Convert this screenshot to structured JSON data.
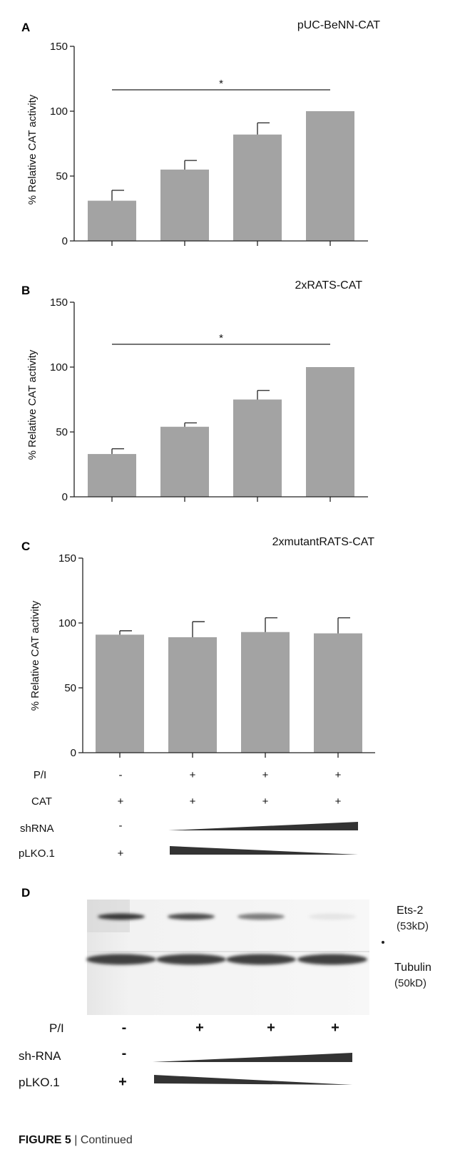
{
  "chart_data": [
    {
      "panel": "A",
      "type": "bar",
      "title": "pUC-BeNN-CAT",
      "ylabel": "% Relative CAT activity",
      "ylim": [
        0,
        150
      ],
      "yticks": [
        0,
        50,
        100,
        150
      ],
      "values": [
        31,
        55,
        82,
        100
      ],
      "errors": [
        8,
        7,
        9,
        0
      ],
      "bar_color": "#a3a3a3",
      "significance": {
        "from": 0,
        "to": 3,
        "label": "*"
      }
    },
    {
      "panel": "B",
      "type": "bar",
      "title": "2xRATS-CAT",
      "ylabel": "% Relative CAT activity",
      "ylim": [
        0,
        150
      ],
      "yticks": [
        0,
        50,
        100,
        150
      ],
      "values": [
        33,
        54,
        75,
        100
      ],
      "errors": [
        4,
        3,
        7,
        0
      ],
      "bar_color": "#a3a3a3",
      "significance": {
        "from": 0,
        "to": 3,
        "label": "*"
      }
    },
    {
      "panel": "C",
      "type": "bar",
      "title": "2xmutantRATS-CAT",
      "ylabel": "% Relative CAT activity",
      "ylim": [
        0,
        150
      ],
      "yticks": [
        0,
        50,
        100,
        150
      ],
      "values": [
        91,
        89,
        93,
        92
      ],
      "errors": [
        3,
        12,
        11,
        12
      ],
      "bar_color": "#a3a3a3"
    }
  ],
  "conditions_c": {
    "rows": [
      {
        "label": "P/I",
        "values": [
          "-",
          "+",
          "+",
          "+"
        ]
      },
      {
        "label": "CAT",
        "values": [
          "+",
          "+",
          "+",
          "+"
        ]
      },
      {
        "label": "shRNA",
        "values": [
          "-"
        ],
        "ramp": "increasing"
      },
      {
        "label": "pLKO.1",
        "values": [
          "+"
        ],
        "ramp": "decreasing"
      }
    ]
  },
  "western_blot": {
    "panel": "D",
    "bands": [
      {
        "name": "Ets-2",
        "size": "(53kD)",
        "intensity": [
          0.9,
          0.8,
          0.55,
          0.03
        ]
      },
      {
        "name": "Tubulin",
        "size": "(50kD)",
        "intensity": [
          0.85,
          0.85,
          0.85,
          0.85
        ]
      }
    ],
    "rows": [
      {
        "label": "P/I",
        "values": [
          "-",
          "+",
          "+",
          "+"
        ]
      },
      {
        "label": "sh-RNA",
        "values": [
          "-"
        ],
        "ramp": "increasing"
      },
      {
        "label": "pLKO.1",
        "values": [
          "+"
        ],
        "ramp": "decreasing"
      }
    ]
  },
  "caption": {
    "figure": "FIGURE 5",
    "separator": " | ",
    "text": "Continued"
  }
}
